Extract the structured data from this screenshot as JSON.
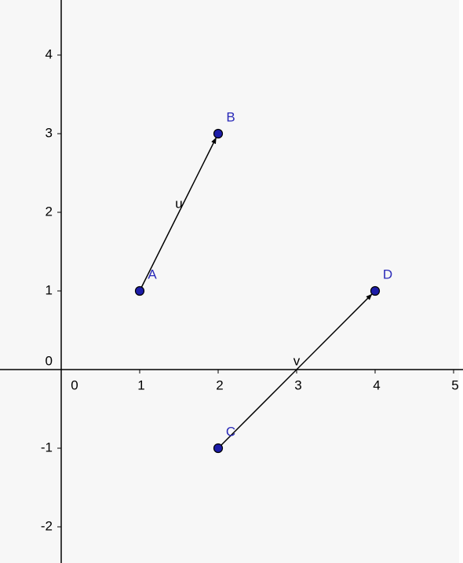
{
  "chart_data": {
    "type": "vector",
    "xlim": [
      -0.78,
      5.12
    ],
    "ylim": [
      -2.46,
      4.7
    ],
    "xticks": [
      0,
      1,
      2,
      3,
      4,
      5
    ],
    "yticks": [
      -2,
      -1,
      0,
      1,
      2,
      3,
      4
    ],
    "grid": false,
    "point_color": "#1c1ca8",
    "label_color": "#2a2ab8",
    "vector_color": "#000000",
    "points": [
      {
        "name": "A",
        "x": 1,
        "y": 1
      },
      {
        "name": "B",
        "x": 2,
        "y": 3
      },
      {
        "name": "C",
        "x": 2,
        "y": -1
      },
      {
        "name": "D",
        "x": 4,
        "y": 1
      }
    ],
    "vectors": [
      {
        "name": "u",
        "x": [
          1,
          2
        ],
        "y": [
          1,
          3
        ]
      },
      {
        "name": "v",
        "x": [
          2,
          4
        ],
        "y": [
          -1,
          1
        ]
      }
    ]
  }
}
